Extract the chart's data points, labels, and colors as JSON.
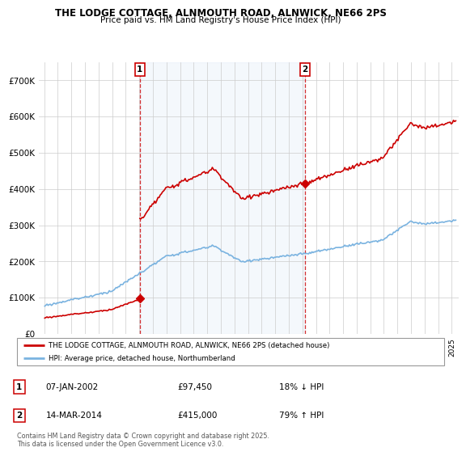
{
  "title": "THE LODGE COTTAGE, ALNMOUTH ROAD, ALNWICK, NE66 2PS",
  "subtitle": "Price paid vs. HM Land Registry's House Price Index (HPI)",
  "legend_line1": "THE LODGE COTTAGE, ALNMOUTH ROAD, ALNWICK, NE66 2PS (detached house)",
  "legend_line2": "HPI: Average price, detached house, Northumberland",
  "transaction1_date": "07-JAN-2002",
  "transaction1_price": "£97,450",
  "transaction1_hpi": "18% ↓ HPI",
  "transaction2_date": "14-MAR-2014",
  "transaction2_price": "£415,000",
  "transaction2_hpi": "79% ↑ HPI",
  "footer": "Contains HM Land Registry data © Crown copyright and database right 2025.\nThis data is licensed under the Open Government Licence v3.0.",
  "hpi_color": "#7ab3e0",
  "price_color": "#cc0000",
  "marker_color": "#cc0000",
  "shade_color": "#ddeeff",
  "bg_color": "#ffffff",
  "grid_color": "#cccccc",
  "annotation_box_color": "#cc0000"
}
